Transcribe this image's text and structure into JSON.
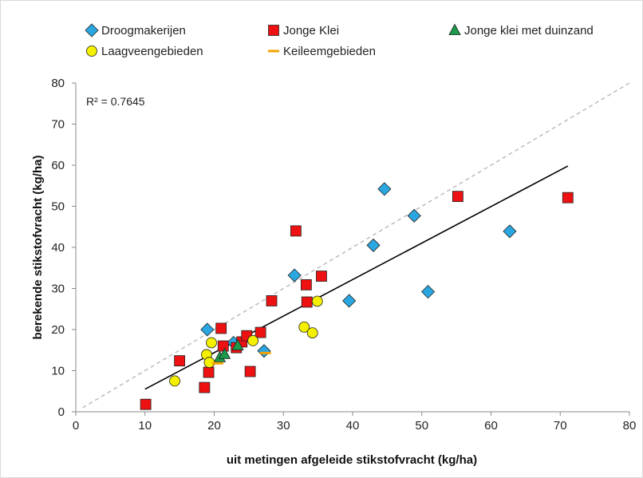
{
  "chart_data": {
    "type": "scatter",
    "title": "",
    "xlabel": "uit metingen afgeleide stikstofvracht (kg/ha)",
    "ylabel": "berekende stikstofvracht (kg/ha)",
    "xlim": [
      0,
      80
    ],
    "ylim": [
      0,
      80
    ],
    "xticks": [
      "0",
      "10",
      "20",
      "30",
      "40",
      "50",
      "60",
      "70",
      "80"
    ],
    "yticks": [
      "0",
      "10",
      "20",
      "30",
      "40",
      "50",
      "60",
      "70",
      "80"
    ],
    "grid": false,
    "legend_position": "top",
    "annotation": "R² = 0.7645",
    "series": [
      {
        "name": "Droogmakerijen",
        "marker": "diamond",
        "color": "#2aa7e0",
        "points": [
          [
            19.0,
            20.0
          ],
          [
            22.8,
            16.8
          ],
          [
            27.2,
            14.8
          ],
          [
            31.6,
            33.2
          ],
          [
            39.5,
            27.0
          ],
          [
            43.0,
            40.5
          ],
          [
            44.6,
            54.2
          ],
          [
            48.9,
            47.7
          ],
          [
            50.9,
            29.2
          ],
          [
            62.7,
            43.9
          ]
        ]
      },
      {
        "name": "Jonge Klei",
        "marker": "square",
        "color": "#ee1111",
        "points": [
          [
            10.1,
            1.8
          ],
          [
            15.0,
            12.4
          ],
          [
            18.6,
            5.9
          ],
          [
            19.2,
            9.6
          ],
          [
            21.0,
            20.3
          ],
          [
            21.3,
            16.0
          ],
          [
            23.2,
            15.6
          ],
          [
            24.0,
            17.0
          ],
          [
            24.7,
            18.5
          ],
          [
            25.2,
            9.8
          ],
          [
            26.7,
            19.3
          ],
          [
            28.3,
            27.0
          ],
          [
            31.8,
            44.0
          ],
          [
            33.3,
            30.9
          ],
          [
            33.4,
            26.7
          ],
          [
            35.5,
            33.0
          ],
          [
            55.2,
            52.4
          ],
          [
            71.1,
            52.1
          ]
        ]
      },
      {
        "name": "Jonge klei met duinzand",
        "marker": "triangle",
        "color": "#1a9a4a",
        "points": [
          [
            20.8,
            13.2
          ],
          [
            21.5,
            14.0
          ],
          [
            23.4,
            16.1
          ]
        ]
      },
      {
        "name": "Laagveengebieden",
        "marker": "circle",
        "color": "#f4f000",
        "points": [
          [
            14.3,
            7.5
          ],
          [
            18.9,
            13.9
          ],
          [
            19.3,
            12.0
          ],
          [
            19.6,
            16.8
          ],
          [
            25.6,
            17.3
          ],
          [
            33.0,
            20.6
          ],
          [
            34.2,
            19.2
          ],
          [
            34.9,
            26.9
          ]
        ]
      },
      {
        "name": "Keileemgebieden",
        "marker": "dash",
        "color": "#f5a300",
        "points": [
          [
            20.5,
            11.8
          ],
          [
            27.4,
            14.3
          ]
        ]
      }
    ],
    "trendline": {
      "x": [
        10.0,
        71.1
      ],
      "y": [
        5.5,
        59.8
      ],
      "color": "#000000"
    },
    "identity_line": {
      "x": [
        1.0,
        80.0
      ],
      "y": [
        1.0,
        80.0
      ],
      "color": "#bbbbbb",
      "dashed": true
    }
  }
}
